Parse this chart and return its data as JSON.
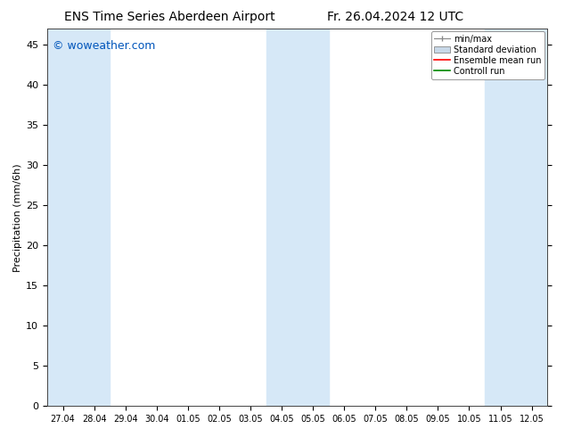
{
  "title": "ENS Time Series Aberdeen Airport",
  "title2": "Fr. 26.04.2024 12 UTC",
  "ylabel": "Precipitation (mm/6h)",
  "xlabel": "",
  "watermark": "© woweather.com",
  "watermark_color": "#0055bb",
  "ylim": [
    0,
    47
  ],
  "yticks": [
    0,
    5,
    10,
    15,
    20,
    25,
    30,
    35,
    40,
    45
  ],
  "x_labels": [
    "27.04",
    "28.04",
    "29.04",
    "30.04",
    "01.05",
    "02.05",
    "03.05",
    "04.05",
    "05.05",
    "06.05",
    "07.05",
    "08.05",
    "09.05",
    "10.05",
    "11.05",
    "12.05"
  ],
  "n_points": 16,
  "shaded_color": "#d6e8f7",
  "background_color": "#ffffff",
  "legend_items": [
    "min/max",
    "Standard deviation",
    "Ensemble mean run",
    "Controll run"
  ],
  "legend_colors": [
    "#888888",
    "#c8d8e8",
    "#ff0000",
    "#008800"
  ],
  "font_size": 8,
  "title_font_size": 10
}
